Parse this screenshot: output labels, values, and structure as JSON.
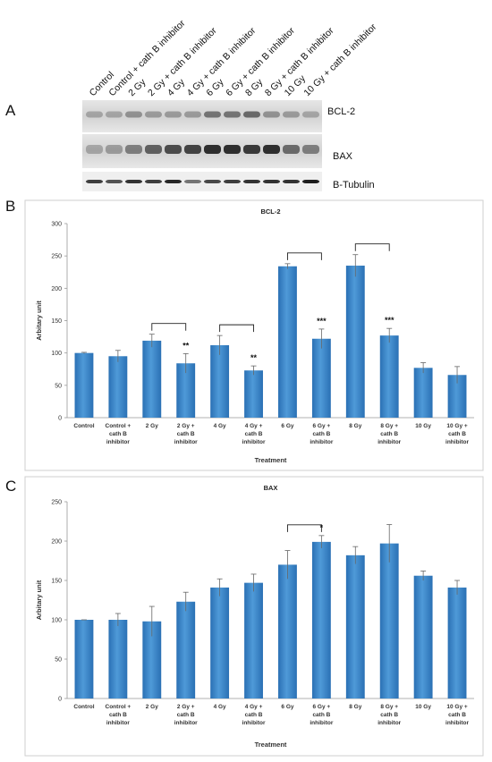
{
  "figure": {
    "panel_a": {
      "letter": "A",
      "lanes": [
        "Control",
        "Control + cath B inhibitor",
        "2 Gy",
        "2 Gy + cath B inhibitor",
        "4 Gy",
        "4 Gy + cath B inhibitor",
        "6 Gy",
        "6 Gy + cath B inhibitor",
        "8 Gy",
        "8 Gy + cath B inhibitor",
        "10 Gy",
        "10 Gy + cath B inhibitor"
      ],
      "blots": [
        "BCL-2",
        "BAX",
        "B-Tubulin"
      ]
    },
    "panel_b": {
      "letter": "B"
    },
    "panel_c": {
      "letter": "C"
    }
  },
  "chart_data": [
    {
      "type": "bar",
      "title": "BCL-2",
      "xlabel": "Treatment",
      "ylabel": "Arbitary unit",
      "ylim": [
        0,
        300
      ],
      "yticks": [
        0,
        50,
        100,
        150,
        200,
        250,
        300
      ],
      "categories": [
        [
          "Control"
        ],
        [
          "Control +",
          "cath B",
          "inhibitor"
        ],
        [
          "2 Gy"
        ],
        [
          "2 Gy +",
          "cath B",
          "inhibitor"
        ],
        [
          "4 Gy"
        ],
        [
          "4 Gy +",
          "cath B",
          "inhibitor"
        ],
        [
          "6 Gy"
        ],
        [
          "6 Gy +",
          "cath B",
          "inhibitor"
        ],
        [
          "8 Gy"
        ],
        [
          "8 Gy +",
          "cath B",
          "inhibitor"
        ],
        [
          "10 Gy"
        ],
        [
          "10 Gy +",
          "cath B",
          "inhibitor"
        ]
      ],
      "values": [
        100,
        95,
        119,
        84,
        112,
        73,
        234,
        122,
        235,
        127,
        77,
        66
      ],
      "errors": [
        1,
        9,
        10,
        15,
        15,
        7,
        4,
        15,
        17,
        11,
        8,
        13
      ],
      "comparisons": [
        {
          "from": 2,
          "to": 3,
          "label": "**"
        },
        {
          "from": 4,
          "to": 5,
          "label": "**"
        },
        {
          "from": 6,
          "to": 7,
          "label": "***"
        },
        {
          "from": 8,
          "to": 9,
          "label": "***"
        }
      ],
      "legend": "none",
      "grid": false,
      "bar_color": "#2e7ec5"
    },
    {
      "type": "bar",
      "title": "BAX",
      "xlabel": "Treatment",
      "ylabel": "Arbitary unit",
      "ylim": [
        0,
        250
      ],
      "yticks": [
        0,
        50,
        100,
        150,
        200,
        250
      ],
      "categories": [
        [
          "Control"
        ],
        [
          "Control +",
          "cath B",
          "inhibitor"
        ],
        [
          "2 Gy"
        ],
        [
          "2 Gy +",
          "cath B",
          "inhibitor"
        ],
        [
          "4 Gy"
        ],
        [
          "4 Gy +",
          "cath B",
          "inhibitor"
        ],
        [
          "6 Gy"
        ],
        [
          "6 Gy +",
          "cath B",
          "inhibitor"
        ],
        [
          "8 Gy"
        ],
        [
          "8 Gy +",
          "cath B",
          "inhibitor"
        ],
        [
          "10 Gy"
        ],
        [
          "10 Gy +",
          "cath B",
          "inhibitor"
        ]
      ],
      "values": [
        100,
        100,
        98,
        123,
        141,
        147,
        170,
        199,
        182,
        197,
        156,
        141
      ],
      "errors": [
        0,
        8,
        19,
        12,
        11,
        11,
        18,
        8,
        11,
        24,
        6,
        9
      ],
      "comparisons": [
        {
          "from": 6,
          "to": 7,
          "label": "*"
        }
      ],
      "legend": "none",
      "grid": false,
      "bar_color": "#2e7ec5"
    }
  ]
}
